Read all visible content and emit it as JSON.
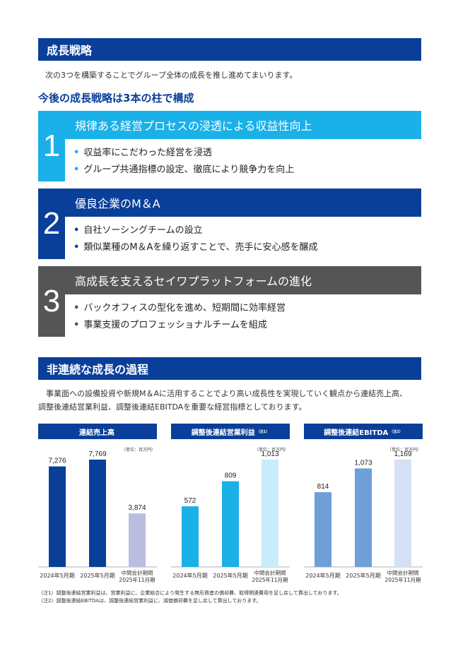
{
  "section1": {
    "title": "成長戦略",
    "lead": "次の3つを構築することでグループ全体の成長を推し進めてまいります。",
    "subhead": "今後の成長戦略は3本の柱で構成"
  },
  "pillars": [
    {
      "num": "1",
      "title": "規律ある経営プロセスの浸透による収益性向上",
      "bullets": [
        "収益率にこだわった経営を浸透",
        "グループ共通指標の設定、徹底により競争力を向上"
      ]
    },
    {
      "num": "2",
      "title": "優良企業のM＆A",
      "bullets": [
        "自社ソーシングチームの設立",
        "類似業種のM＆Aを繰り返すことで、売手に安心感を醸成"
      ]
    },
    {
      "num": "3",
      "title": "高成長を支えるセイワプラットフォームの進化",
      "bullets": [
        "バックオフィスの型化を進め、短期間に効率経営",
        "事業支援のプロフェッショナルチームを組成"
      ]
    }
  ],
  "section2": {
    "title": "非連続な成長の過程",
    "paragraph_line1": "事業面への設備投資や新規M＆Aに活用することでより高い成長性を実現していく観点から連結売上高、",
    "paragraph_line2": "調整後連結営業利益、調整後連結EBITDAを重要な経営指標としております。"
  },
  "chart_data": [
    {
      "type": "bar",
      "title": "連結売上高",
      "title_note": "",
      "unit": "（単位：百万円）",
      "categories": [
        "2024年5月期",
        "2025年5月期",
        "中間会計期間\n2025年11月期"
      ],
      "values": [
        7276,
        7769,
        3874
      ],
      "labels": [
        "7,276",
        "7,769",
        "3,874"
      ],
      "colors": [
        "#0a3f99",
        "#0a3f99",
        "#b9bde0"
      ]
    },
    {
      "type": "bar",
      "title": "調整後連結営業利益",
      "title_note": "（注1）",
      "unit": "（単位：百万円）",
      "categories": [
        "2024年5月期",
        "2025年5月期",
        "中間会計期間\n2025年11月期"
      ],
      "values": [
        572,
        809,
        1013
      ],
      "labels": [
        "572",
        "809",
        "1,013"
      ],
      "colors": [
        "#1ab0e8",
        "#1ab0e8",
        "#c8ecfa"
      ]
    },
    {
      "type": "bar",
      "title": "調整後連結EBITDA",
      "title_note": "（注2）",
      "unit": "（単位：百万円）",
      "categories": [
        "2024年5月期",
        "2025年5月期",
        "中間会計期間\n2025年11月期"
      ],
      "values": [
        814,
        1073,
        1169
      ],
      "labels": [
        "814",
        "1,073",
        "1,169"
      ],
      "colors": [
        "#6e9fd6",
        "#6e9fd6",
        "#d4e1f4"
      ]
    }
  ],
  "notes": [
    "（注1）調整後連結営業利益は、営業利益に、企業結合により発生する無形資産の償却費、取得関連費用を足し戻して算出しております。",
    "（注2）調整後連結EBITDAは、調整後連結営業利益に、減価償却費を足し戻して算出しております。"
  ]
}
